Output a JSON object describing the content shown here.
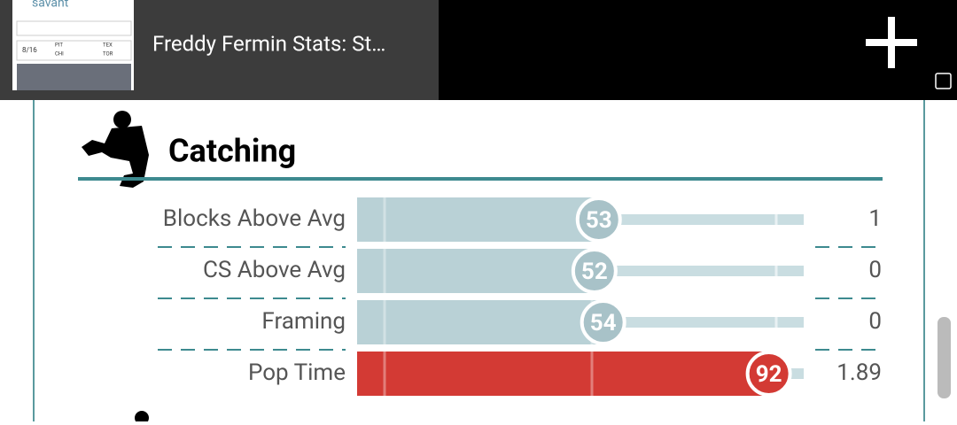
{
  "tab": {
    "title": "Freddy Fermin Stats: St…",
    "thumbnail": {
      "brand": "savant",
      "date": "8/16",
      "teams": [
        "PIT",
        "CHI",
        "TEX",
        "TOR"
      ]
    }
  },
  "section": {
    "title": "Catching",
    "rows": [
      {
        "label": "Blocks Above Avg",
        "percentile": 53,
        "value": 1
      },
      {
        "label": "CS Above Avg",
        "percentile": 52,
        "value": 0
      },
      {
        "label": "Framing",
        "percentile": 54,
        "value": 0
      },
      {
        "label": "Pop Time",
        "percentile": 92,
        "value": 1.89
      }
    ]
  }
}
